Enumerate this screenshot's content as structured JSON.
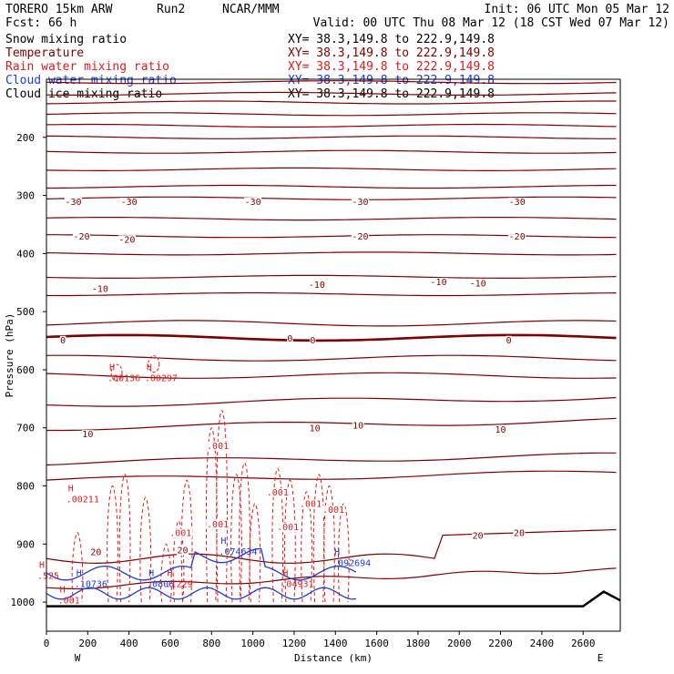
{
  "header": {
    "model": "TORERO  15km ARW",
    "run": "Run2",
    "source": "NCAR/MMM",
    "init": "Init: 06 UTC Mon 05 Mar 12",
    "fcst": "Fcst:   66 h",
    "valid": "Valid: 00 UTC Thu 08 Mar 12 (18 CST Wed 07 Mar 12)"
  },
  "colors": {
    "temperature": "#7f0000",
    "rain": "#e31a1c",
    "cloud_water": "#1e3cd6",
    "black": "#000000"
  },
  "chart_data": {
    "type": "line",
    "title": "Cross section: Snow mixing ratio, Temperature, Rain water mixing ratio, Cloud water mixing ratio, Cloud ice mixing ratio",
    "xlabel": "Distance (km)",
    "ylabel": "Pressure (hPa)",
    "xlim": [
      0,
      2780
    ],
    "ylim": [
      1050,
      100
    ],
    "x_ticks": [
      0,
      200,
      400,
      600,
      800,
      1000,
      1200,
      1400,
      1600,
      1800,
      2000,
      2200,
      2400,
      2600
    ],
    "y_ticks": [
      200,
      300,
      400,
      500,
      600,
      700,
      800,
      900,
      1000
    ],
    "x_ends": {
      "left": "W",
      "right": "E"
    },
    "legend": [
      {
        "label": "Snow mixing ratio",
        "xy": "XY=  38.3,149.8 to 222.9,149.8",
        "color": "#000000"
      },
      {
        "label": "Temperature",
        "xy": "XY=  38.3,149.8 to 222.9,149.8",
        "color": "#7f0000"
      },
      {
        "label": "Rain water mixing ratio",
        "xy": "XY=  38.3,149.8 to 222.9,149.8",
        "color": "#e31a1c"
      },
      {
        "label": "Cloud water mixing ratio",
        "xy": "XY=  38.3,149.8 to 222.9,149.8",
        "color": "#1e3cd6"
      },
      {
        "label": "Cloud ice mixing ratio",
        "xy": "XY=  38.3,149.8 to 222.9,149.8",
        "color": "#000000"
      }
    ],
    "isotherm_pressures": [
      105,
      125,
      140,
      160,
      180,
      200,
      225,
      255,
      285,
      305,
      340,
      370,
      400,
      440,
      470,
      520,
      545,
      580,
      610,
      660,
      700,
      760,
      790
    ],
    "isotherm_labels": [
      {
        "text": "-30",
        "x": 130,
        "p": 310,
        "color": "#7f0000"
      },
      {
        "text": "-30",
        "x": 400,
        "p": 310,
        "color": "#7f0000"
      },
      {
        "text": "-30",
        "x": 1000,
        "p": 310,
        "color": "#7f0000"
      },
      {
        "text": "-30",
        "x": 1520,
        "p": 310,
        "color": "#7f0000"
      },
      {
        "text": "-30",
        "x": 2280,
        "p": 310,
        "color": "#7f0000"
      },
      {
        "text": "-20",
        "x": 170,
        "p": 370,
        "color": "#7f0000"
      },
      {
        "text": "-20",
        "x": 390,
        "p": 375,
        "color": "#7f0000"
      },
      {
        "text": "-20",
        "x": 1520,
        "p": 370,
        "color": "#7f0000"
      },
      {
        "text": "-20",
        "x": 2280,
        "p": 370,
        "color": "#7f0000"
      },
      {
        "text": "-10",
        "x": 260,
        "p": 460,
        "color": "#7f0000"
      },
      {
        "text": "-10",
        "x": 1310,
        "p": 453,
        "color": "#7f0000"
      },
      {
        "text": "-10",
        "x": 1900,
        "p": 448,
        "color": "#7f0000"
      },
      {
        "text": "-10",
        "x": 2090,
        "p": 450,
        "color": "#7f0000"
      },
      {
        "text": "0",
        "x": 80,
        "p": 548,
        "color": "#7f0000"
      },
      {
        "text": "0",
        "x": 1180,
        "p": 545,
        "color": "#7f0000"
      },
      {
        "text": "0",
        "x": 1290,
        "p": 548,
        "color": "#7f0000"
      },
      {
        "text": "0",
        "x": 2240,
        "p": 548,
        "color": "#7f0000"
      },
      {
        "text": "10",
        "x": 200,
        "p": 710,
        "color": "#7f0000"
      },
      {
        "text": "10",
        "x": 1300,
        "p": 700,
        "color": "#7f0000"
      },
      {
        "text": "10",
        "x": 1510,
        "p": 695,
        "color": "#7f0000"
      },
      {
        "text": "10",
        "x": 2200,
        "p": 702,
        "color": "#7f0000"
      },
      {
        "text": "20",
        "x": 240,
        "p": 913,
        "color": "#7f0000"
      },
      {
        "text": "20",
        "x": 660,
        "p": 910,
        "color": "#7f0000"
      },
      {
        "text": "20",
        "x": 2090,
        "p": 885,
        "color": "#7f0000"
      },
      {
        "text": "20",
        "x": 2290,
        "p": 880,
        "color": "#7f0000"
      }
    ],
    "maxima": [
      {
        "text": ".00136",
        "x": 340,
        "p": 620,
        "color": "#e31a1c"
      },
      {
        "text": ".00297",
        "x": 520,
        "p": 620,
        "color": "#e31a1c"
      },
      {
        "text": ".00211",
        "x": 140,
        "p": 828,
        "color": "#e31a1c"
      },
      {
        "text": ".10736",
        "x": 180,
        "p": 974,
        "color": "#1e3cd6"
      },
      {
        "text": ".0806",
        "x": 530,
        "p": 974,
        "color": "#1e3cd6"
      },
      {
        "text": ".1229",
        "x": 620,
        "p": 974,
        "color": "#e31a1c"
      },
      {
        "text": ".074634",
        "x": 880,
        "p": 918,
        "color": "#1e3cd6"
      },
      {
        "text": ".04931",
        "x": 1180,
        "p": 974,
        "color": "#e31a1c"
      },
      {
        "text": ".092694",
        "x": 1430,
        "p": 938,
        "color": "#1e3cd6"
      },
      {
        "text": ".525",
        "x": 0,
        "p": 960,
        "color": "#e31a1c"
      },
      {
        "text": ".001",
        "x": 100,
        "p": 1002,
        "color": "#e31a1c"
      }
    ],
    "rain_contour_labels": [
      {
        "text": ".001",
        "x": 830,
        "p": 730
      },
      {
        "text": ".001",
        "x": 650,
        "p": 880
      },
      {
        "text": ".001",
        "x": 830,
        "p": 865
      },
      {
        "text": ".001",
        "x": 1120,
        "p": 810
      },
      {
        "text": ".001",
        "x": 1280,
        "p": 830
      },
      {
        "text": ".001",
        "x": 1390,
        "p": 840
      },
      {
        "text": ".001",
        "x": 1170,
        "p": 870
      }
    ]
  }
}
